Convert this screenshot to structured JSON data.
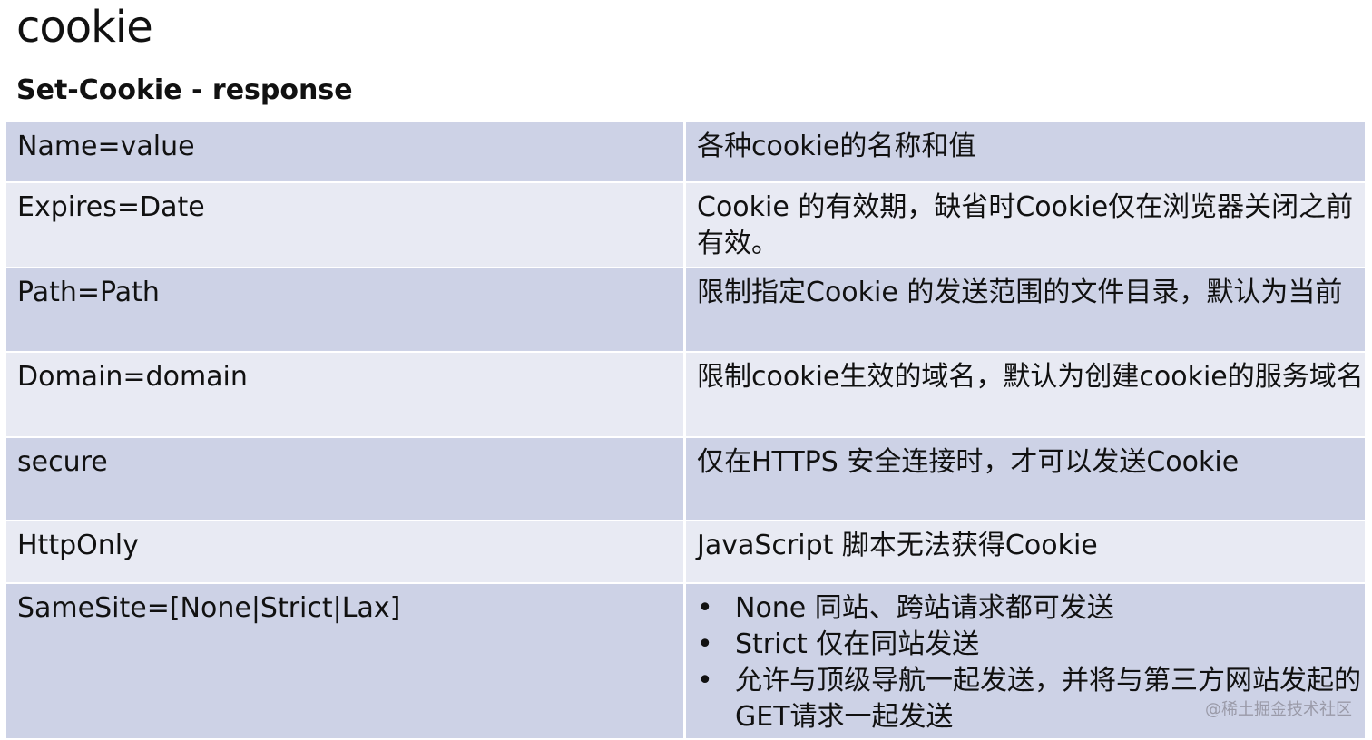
{
  "title": "cookie",
  "subtitle": "Set-Cookie - response",
  "rows": [
    {
      "key": "Name=value",
      "desc": "各种cookie的名称和值"
    },
    {
      "key": "Expires=Date",
      "desc": "Cookie 的有效期，缺省时Cookie仅在浏览器关闭之前有效。"
    },
    {
      "key": "Path=Path",
      "desc": "限制指定Cookie 的发送范围的文件目录，默认为当前"
    },
    {
      "key": "Domain=domain",
      "desc": "限制cookie生效的域名，默认为创建cookie的服务域名"
    },
    {
      "key": "secure",
      "desc": "仅在HTTPS 安全连接时，才可以发送Cookie"
    },
    {
      "key": "HttpOnly",
      "desc": "JavaScript 脚本无法获得Cookie"
    },
    {
      "key": "SameSite=[None|Strict|Lax]",
      "bullets": [
        "None 同站、跨站请求都可发送",
        "Strict 仅在同站发送",
        "允许与顶级导航一起发送，并将与第三方网站发起的GET请求一起发送"
      ]
    }
  ],
  "watermark": "@稀土掘金技术社区"
}
